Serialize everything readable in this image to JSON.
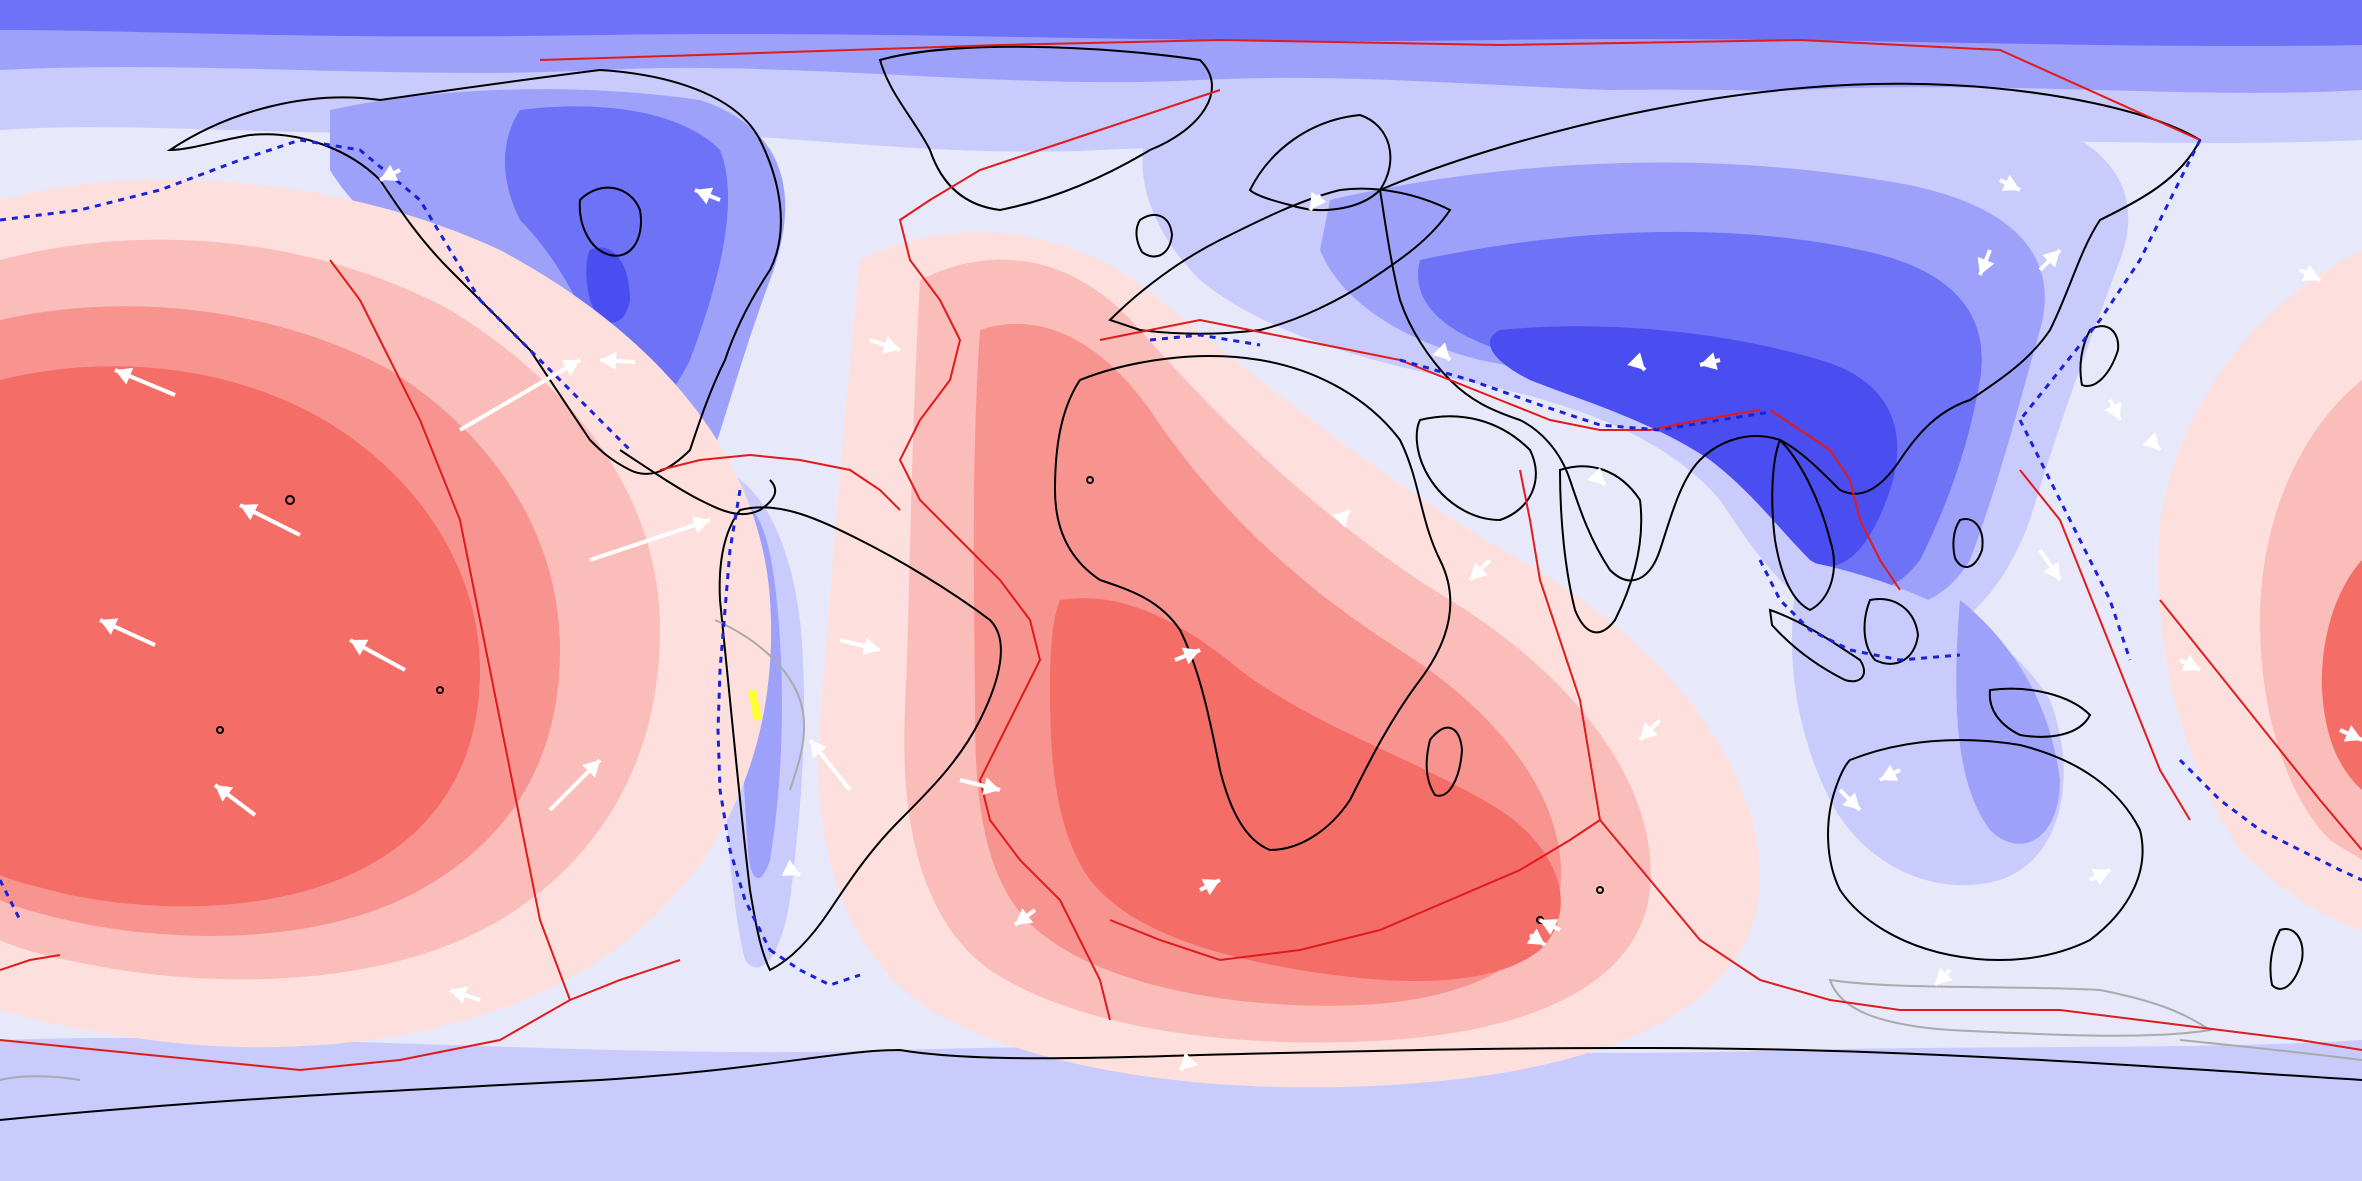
{
  "map": {
    "projection": "equirectangular-world",
    "colors": {
      "blue_dark": "#4a4ef0",
      "blue_mid": "#6e72f6",
      "blue_light": "#9ea1fa",
      "blue_pale": "#c9cbfc",
      "neutral": "#e8e8fb",
      "red_pale": "#fde0de",
      "red_light": "#fbbdb9",
      "red_mid": "#f8948f",
      "red_dark": "#f46d66",
      "coastline": "#000000",
      "plate_boundary": "#e01b1b",
      "subduction_zone": "#1a22d8",
      "velocity_arrow": "#ffffff",
      "secondary_boundary": "#aaaaaa",
      "highlight": "#ffff33"
    },
    "features": {
      "coastlines": true,
      "plate_boundaries": true,
      "subduction_zones": true,
      "velocity_arrows": true
    }
  }
}
